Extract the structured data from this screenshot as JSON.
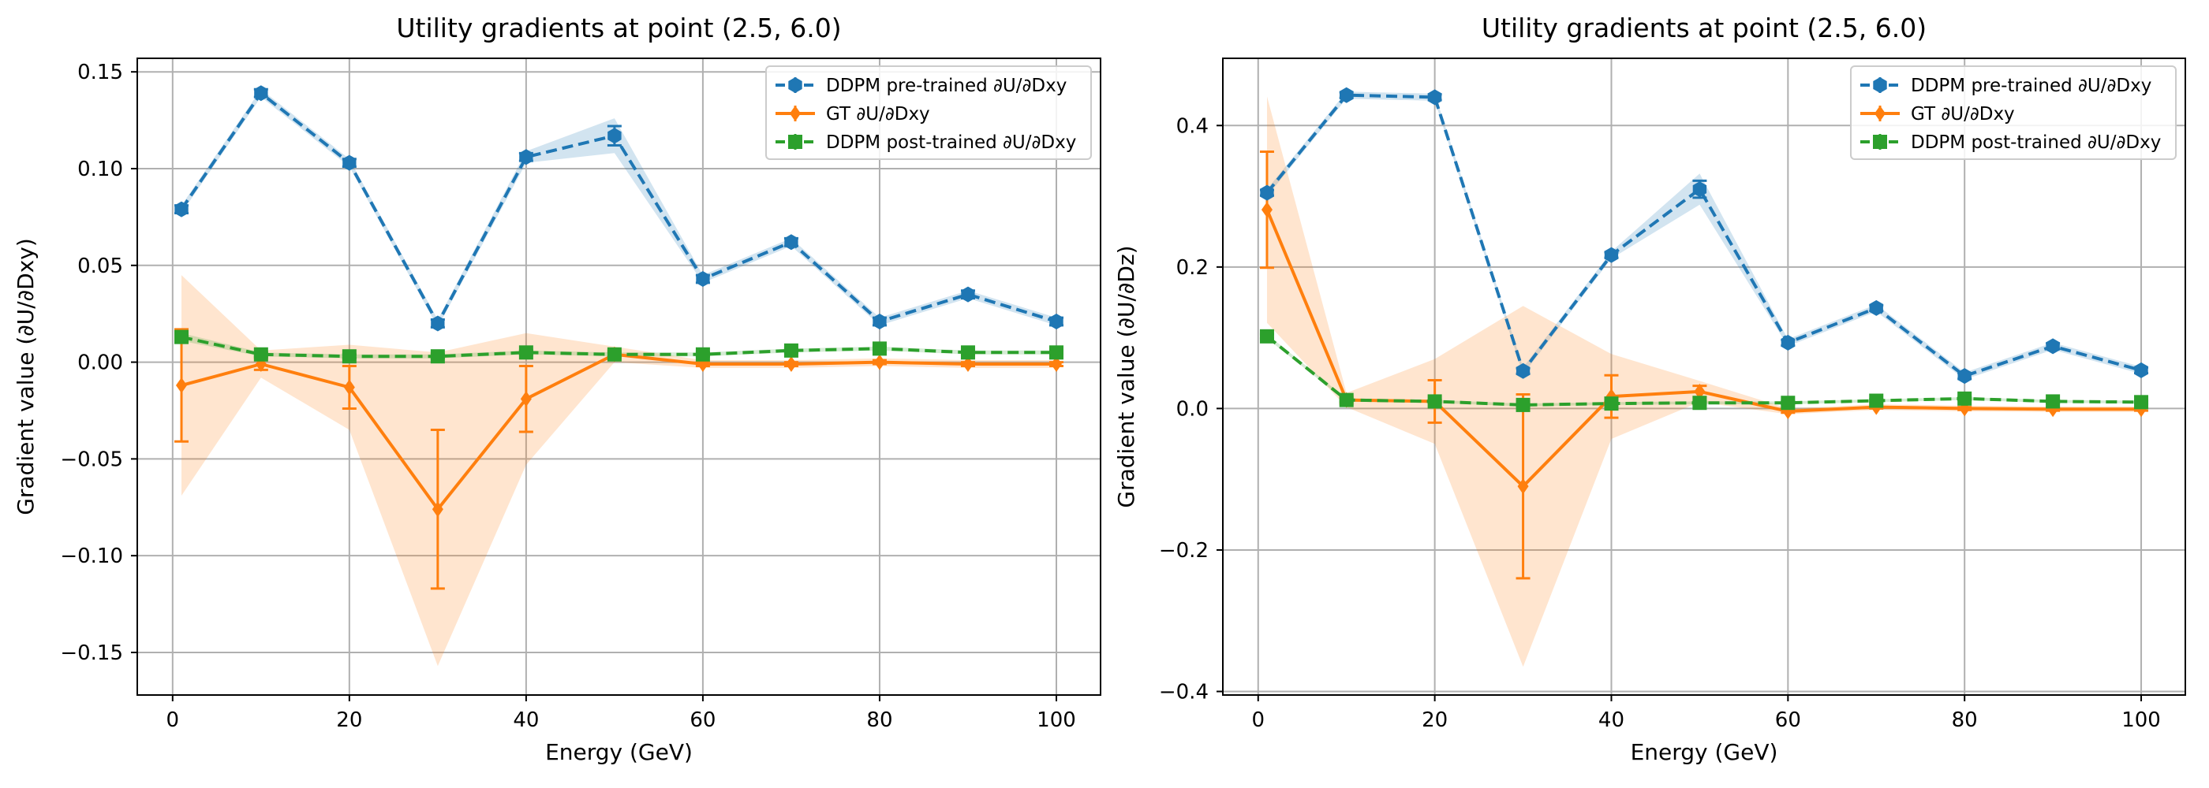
{
  "chart_data": [
    {
      "type": "line",
      "title": "Utility gradients at point (2.5, 6.0)",
      "xlabel": "Energy (GeV)",
      "ylabel": "Gradient value (∂U/∂Dxy)",
      "xlim": [
        -4,
        105
      ],
      "ylim": [
        -0.172,
        0.157
      ],
      "xticks": [
        0,
        20,
        40,
        60,
        80,
        100
      ],
      "xtick_labels": [
        "0",
        "20",
        "40",
        "60",
        "80",
        "100"
      ],
      "yticks": [
        0.15,
        0.1,
        0.05,
        0.0,
        -0.05,
        -0.1,
        -0.15
      ],
      "ytick_labels": [
        "0.15",
        "0.10",
        "0.05",
        "0.00",
        "−0.05",
        "−0.10",
        "−0.15"
      ],
      "grid": true,
      "legend_position": "upper-right",
      "series": [
        {
          "name": "DDPM pre-trained ∂U/∂Dxy",
          "color": "#1f77b4",
          "style": "dashed",
          "marker": "hexagon",
          "x": [
            1,
            10,
            20,
            30,
            40,
            50,
            60,
            70,
            80,
            90,
            100
          ],
          "values": [
            0.079,
            0.139,
            0.103,
            0.02,
            0.106,
            0.117,
            0.043,
            0.062,
            0.021,
            0.035,
            0.021
          ],
          "error": [
            0.002,
            0.002,
            0.002,
            0.002,
            0.002,
            0.005,
            0.002,
            0.002,
            0.002,
            0.002,
            0.002
          ],
          "band": [
            0.002,
            0.002,
            0.002,
            0.002,
            0.003,
            0.009,
            0.002,
            0.002,
            0.002,
            0.002,
            0.002
          ]
        },
        {
          "name": "GT ∂U/∂Dxy",
          "color": "#ff7f0e",
          "style": "solid",
          "marker": "diamond",
          "x": [
            1,
            10,
            20,
            30,
            40,
            50,
            60,
            70,
            80,
            90,
            100
          ],
          "values": [
            -0.012,
            -0.001,
            -0.013,
            -0.076,
            -0.019,
            0.004,
            -0.001,
            -0.001,
            0.0,
            -0.001,
            -0.001
          ],
          "error": [
            0.029,
            0.003,
            0.011,
            0.041,
            0.017,
            0.002,
            0.001,
            0.001,
            0.001,
            0.001,
            0.001
          ],
          "band": [
            0.057,
            0.007,
            0.022,
            0.081,
            0.034,
            0.004,
            0.002,
            0.002,
            0.002,
            0.002,
            0.002
          ]
        },
        {
          "name": "DDPM post-trained ∂U/∂Dxy",
          "color": "#2ca02c",
          "style": "dashed",
          "marker": "square",
          "x": [
            1,
            10,
            20,
            30,
            40,
            50,
            60,
            70,
            80,
            90,
            100
          ],
          "values": [
            0.013,
            0.004,
            0.003,
            0.003,
            0.005,
            0.004,
            0.004,
            0.006,
            0.007,
            0.005,
            0.005
          ],
          "error": [
            0.002,
            0.001,
            0.001,
            0.001,
            0.001,
            0.001,
            0.001,
            0.001,
            0.001,
            0.001,
            0.001
          ],
          "band": [
            0.002,
            0.001,
            0.001,
            0.001,
            0.001,
            0.001,
            0.001,
            0.001,
            0.001,
            0.001,
            0.001
          ]
        }
      ]
    },
    {
      "type": "line",
      "title": "Utility gradients at point (2.5, 6.0)",
      "xlabel": "Energy (GeV)",
      "ylabel": "Gradient value (∂U/∂Dz)",
      "xlim": [
        -4,
        105
      ],
      "ylim": [
        -0.405,
        0.495
      ],
      "xticks": [
        0,
        20,
        40,
        60,
        80,
        100
      ],
      "xtick_labels": [
        "0",
        "20",
        "40",
        "60",
        "80",
        "100"
      ],
      "yticks": [
        0.4,
        0.2,
        0.0,
        -0.2,
        -0.4
      ],
      "ytick_labels": [
        "0.4",
        "0.2",
        "0.0",
        "−0.2",
        "−0.4"
      ],
      "grid": true,
      "legend_position": "upper-right",
      "series": [
        {
          "name": "DDPM pre-trained ∂U/∂Dxy",
          "color": "#1f77b4",
          "style": "dashed",
          "marker": "hexagon",
          "x": [
            1,
            10,
            20,
            30,
            40,
            50,
            60,
            70,
            80,
            90,
            100
          ],
          "values": [
            0.305,
            0.443,
            0.44,
            0.053,
            0.217,
            0.31,
            0.093,
            0.142,
            0.046,
            0.088,
            0.054
          ],
          "error": [
            0.004,
            0.004,
            0.004,
            0.004,
            0.004,
            0.012,
            0.004,
            0.004,
            0.004,
            0.004,
            0.004
          ],
          "band": [
            0.005,
            0.005,
            0.005,
            0.005,
            0.005,
            0.022,
            0.005,
            0.005,
            0.005,
            0.005,
            0.005
          ]
        },
        {
          "name": "GT ∂U/∂Dxy",
          "color": "#ff7f0e",
          "style": "solid",
          "marker": "diamond",
          "x": [
            1,
            10,
            20,
            30,
            40,
            50,
            60,
            70,
            80,
            90,
            100
          ],
          "values": [
            0.281,
            0.012,
            0.01,
            -0.11,
            0.017,
            0.024,
            -0.004,
            0.002,
            0.0,
            -0.001,
            -0.001
          ],
          "error": [
            0.082,
            0.005,
            0.03,
            0.13,
            0.03,
            0.008,
            0.002,
            0.002,
            0.002,
            0.002,
            0.002
          ],
          "band": [
            0.16,
            0.01,
            0.06,
            0.255,
            0.06,
            0.015,
            0.004,
            0.004,
            0.004,
            0.004,
            0.004
          ]
        },
        {
          "name": "DDPM post-trained ∂U/∂Dxy",
          "color": "#2ca02c",
          "style": "dashed",
          "marker": "square",
          "x": [
            1,
            10,
            20,
            30,
            40,
            50,
            60,
            70,
            80,
            90,
            100
          ],
          "values": [
            0.102,
            0.012,
            0.01,
            0.005,
            0.007,
            0.008,
            0.008,
            0.011,
            0.014,
            0.01,
            0.009
          ],
          "error": [
            0.003,
            0.002,
            0.002,
            0.002,
            0.002,
            0.002,
            0.002,
            0.002,
            0.002,
            0.002,
            0.002
          ],
          "band": [
            0.003,
            0.002,
            0.002,
            0.002,
            0.002,
            0.002,
            0.002,
            0.002,
            0.002,
            0.002,
            0.002
          ]
        }
      ]
    }
  ]
}
